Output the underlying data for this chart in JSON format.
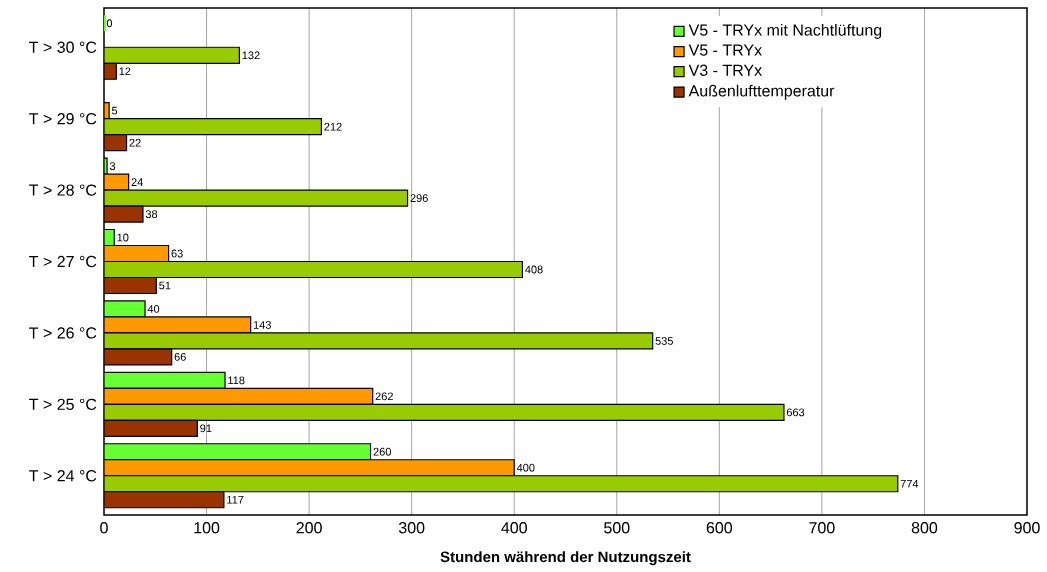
{
  "chart_data": {
    "type": "bar",
    "orientation": "horizontal",
    "xlabel": "Stunden während der Nutzungszeit",
    "categories": [
      "T > 30 °C",
      "T > 29 °C",
      "T > 28 °C",
      "T > 27 °C",
      "T > 26 °C",
      "T > 25 °C",
      "T > 24 °C"
    ],
    "series": [
      {
        "name": "V5 - TRYx mit Nachtlüftung",
        "color": "#66ff33",
        "values": [
          0,
          null,
          3,
          10,
          40,
          118,
          260
        ]
      },
      {
        "name": "V5 - TRYx",
        "color": "#ff9900",
        "values": [
          null,
          5,
          24,
          63,
          143,
          262,
          400
        ]
      },
      {
        "name": "V3 - TRYx",
        "color": "#99cc00",
        "values": [
          132,
          212,
          296,
          408,
          535,
          663,
          774
        ]
      },
      {
        "name": "Außenlufttemperatur",
        "color": "#993300",
        "values": [
          12,
          22,
          38,
          51,
          66,
          91,
          117
        ]
      }
    ],
    "xlim": [
      0,
      900
    ],
    "xticks": [
      0,
      100,
      200,
      300,
      400,
      500,
      600,
      700,
      800,
      900
    ],
    "grid": "x",
    "legend": "top right",
    "data_labels": true
  }
}
